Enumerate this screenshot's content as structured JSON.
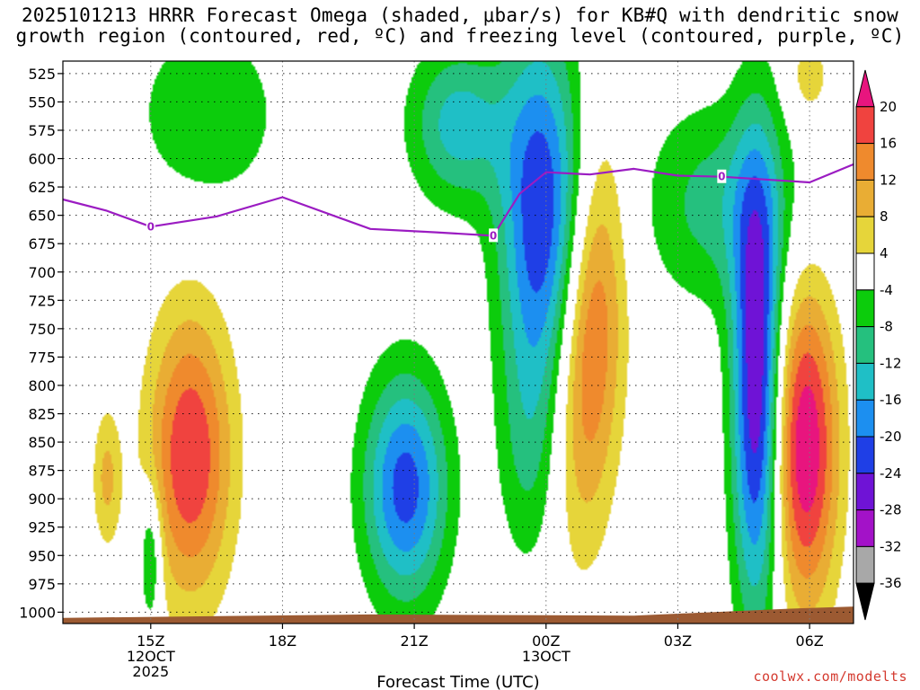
{
  "title_line1": "2025101213 HRRR Forecast Omega (shaded, μbar/s) for KB#Q with dendritic snow",
  "title_line2": "growth region (contoured, red, ºC) and freezing level (contoured, purple, ºC)",
  "credit": "coolwx.com/modelts",
  "chart_data": {
    "type": "heatmap",
    "title": "2025101213 HRRR Forecast Omega (shaded, μbar/s) for KB#Q with dendritic snow growth region (contoured, red, ºC) and freezing level (contoured, purple, ºC)",
    "xlabel": "Forecast Time (UTC)",
    "ylabel": "",
    "x_range_hours": [
      13.0,
      31.0
    ],
    "y_range_mb": [
      1010,
      514
    ],
    "y_ticks": [
      525,
      550,
      575,
      600,
      625,
      650,
      675,
      700,
      725,
      750,
      775,
      800,
      825,
      850,
      875,
      900,
      925,
      950,
      975,
      1000
    ],
    "x_ticks": [
      {
        "hour": 15,
        "label": "15Z",
        "sub1": "12OCT",
        "sub2": "2025"
      },
      {
        "hour": 18,
        "label": "18Z",
        "sub1": "",
        "sub2": ""
      },
      {
        "hour": 21,
        "label": "21Z",
        "sub1": "",
        "sub2": ""
      },
      {
        "hour": 24,
        "label": "00Z",
        "sub1": "13OCT",
        "sub2": ""
      },
      {
        "hour": 27,
        "label": "03Z",
        "sub1": "",
        "sub2": ""
      },
      {
        "hour": 30,
        "label": "06Z",
        "sub1": "",
        "sub2": ""
      }
    ],
    "grid": true,
    "colorbar": {
      "placement": "right",
      "labels": [
        "20",
        "16",
        "12",
        "8",
        "4",
        "-4",
        "-8",
        "-12",
        "-16",
        "-20",
        "-24",
        "-28",
        "-32",
        "-36"
      ],
      "levels": [
        {
          "min": 20,
          "max": 24,
          "color": "#e8157e"
        },
        {
          "min": 16,
          "max": 20,
          "color": "#f0433f"
        },
        {
          "min": 12,
          "max": 16,
          "color": "#ef8a2d"
        },
        {
          "min": 8,
          "max": 12,
          "color": "#e9ad34"
        },
        {
          "min": 4,
          "max": 8,
          "color": "#e6d53a"
        },
        {
          "min": -4,
          "max": 4,
          "color": "#ffffff"
        },
        {
          "min": -8,
          "max": -4,
          "color": "#0ccc0c"
        },
        {
          "min": -12,
          "max": -8,
          "color": "#25c07e"
        },
        {
          "min": -16,
          "max": -12,
          "color": "#1fbfc6"
        },
        {
          "min": -20,
          "max": -16,
          "color": "#1c8ff0"
        },
        {
          "min": -24,
          "max": -20,
          "color": "#1f3fe6"
        },
        {
          "min": -28,
          "max": -24,
          "color": "#6f13d6"
        },
        {
          "min": -32,
          "max": -28,
          "color": "#a312c8"
        },
        {
          "min": -36,
          "max": -32,
          "color": "#a8a8a8"
        },
        {
          "min": -40,
          "max": -36,
          "color": "#000000"
        }
      ]
    },
    "omega_features": [
      {
        "name": "rising-core-west",
        "hour": 15.9,
        "mb": 862,
        "peak": 20,
        "hw": 0.95,
        "hm": 125,
        "rot": 0
      },
      {
        "name": "rising-core-southwest",
        "hour": 14.0,
        "mb": 882,
        "peak": 9,
        "hw": 0.32,
        "hm": 60,
        "rot": 0
      },
      {
        "name": "rising-core-midnight",
        "hour": 25.0,
        "mb": 760,
        "peak": 18,
        "hw": 0.75,
        "hm": 170,
        "rot": 0.1
      },
      {
        "name": "rising-core-east",
        "hour": 29.9,
        "mb": 855,
        "peak": 24,
        "hw": 0.75,
        "hm": 140,
        "rot": 0
      },
      {
        "name": "rising-top-east",
        "hour": 30.0,
        "mb": 528,
        "peak": 7,
        "hw": 0.45,
        "hm": 35,
        "rot": 0
      },
      {
        "name": "sinking-center",
        "hour": 20.8,
        "mb": 890,
        "peak": -22,
        "hw": 0.95,
        "hm": 100,
        "rot": 0
      },
      {
        "name": "sinking-upper-center",
        "hour": 22.0,
        "mb": 570,
        "peak": -14,
        "hw": 1.1,
        "hm": 70,
        "rot": 0
      },
      {
        "name": "sinking-upper-left",
        "hour": 16.3,
        "mb": 560,
        "peak": -8,
        "hw": 1.6,
        "hm": 80,
        "rot": 0
      },
      {
        "name": "sinking-south",
        "hour": 15.0,
        "mb": 950,
        "peak": -12,
        "hw": 0.25,
        "hm": 60,
        "rot": 0
      },
      {
        "name": "sinking-evening",
        "hour": 23.9,
        "mb": 650,
        "peak": -24,
        "hw": 0.95,
        "hm": 160,
        "rot": 0
      },
      {
        "name": "sinking-lower-mid",
        "hour": 23.6,
        "mb": 860,
        "peak": -7,
        "hw": 0.7,
        "hm": 110,
        "rot": 0
      },
      {
        "name": "sinking-early-morning",
        "hour": 28.8,
        "mb": 800,
        "peak": -29,
        "hw": 0.55,
        "hm": 200,
        "rot": 0
      },
      {
        "name": "sinking-dawn-upper",
        "hour": 28.0,
        "mb": 640,
        "peak": -10,
        "hw": 1.8,
        "hm": 90,
        "rot": 0
      }
    ],
    "freezing_level": {
      "label": "0",
      "points": [
        [
          13.0,
          636
        ],
        [
          14.0,
          646
        ],
        [
          15.0,
          660
        ],
        [
          16.5,
          651
        ],
        [
          18.0,
          634
        ],
        [
          20.0,
          662
        ],
        [
          21.5,
          665
        ],
        [
          22.8,
          668
        ],
        [
          23.4,
          631
        ],
        [
          24.0,
          612
        ],
        [
          25.0,
          614
        ],
        [
          26.0,
          609
        ],
        [
          27.0,
          615
        ],
        [
          28.0,
          616
        ],
        [
          30.0,
          621
        ],
        [
          31.0,
          605
        ]
      ],
      "label_hours": [
        15.0,
        22.8,
        28.0
      ]
    },
    "terrain": {
      "color": "#9c5a32",
      "points": [
        [
          13.0,
          1005
        ],
        [
          20.0,
          1002
        ],
        [
          26.0,
          1003
        ],
        [
          29.5,
          997
        ],
        [
          31.0,
          995
        ]
      ]
    }
  }
}
